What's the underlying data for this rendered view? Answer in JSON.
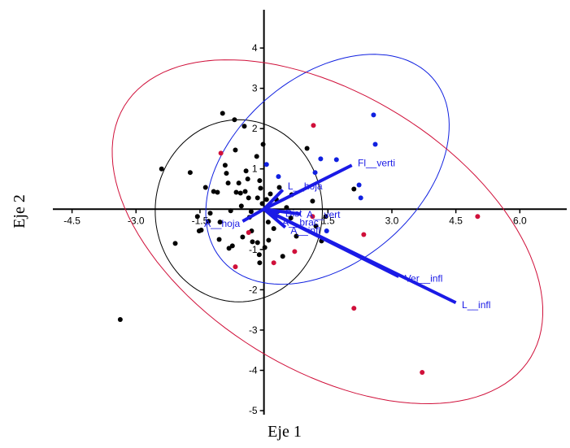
{
  "chart_data": {
    "type": "biplot",
    "xlabel": "Eje 1",
    "ylabel": "Eje 2",
    "xlim": [
      -4.95,
      7.1
    ],
    "ylim": [
      -5.1,
      4.95
    ],
    "xticks": [
      -4.5,
      {
        "value": -3,
        "label": "-3.0"
      },
      -1.5,
      1.5,
      {
        "value": 3,
        "label": "3.0"
      },
      4.5,
      {
        "value": 6,
        "label": "6.0"
      }
    ],
    "yticks": [
      4,
      3,
      2,
      1,
      -1,
      -2,
      -3,
      -4,
      -5
    ],
    "groups": [
      {
        "color": "#000000",
        "x": [
          -3.37,
          -2.4,
          -2.08,
          -1.73,
          -1.56,
          -1.47,
          -1.37,
          -1.26,
          -1.18,
          -1.09,
          -1.03,
          -0.97,
          -0.91,
          -0.88,
          -0.84,
          -0.78,
          -0.74,
          -0.69,
          -0.67,
          -0.65,
          -0.59,
          -0.55,
          -0.53,
          -0.5,
          -0.46,
          -0.44,
          -0.42,
          -0.38,
          -0.36,
          -0.34,
          -0.29,
          -0.27,
          -0.17,
          -0.15,
          -0.11,
          -0.1,
          -0.08,
          -0.04,
          -0.02,
          0.02,
          0.06,
          0.1,
          0.15,
          -0.15,
          -0.1,
          0.23,
          0.29,
          0.36,
          0.44,
          0.53,
          0.63,
          0.65,
          0.76,
          1.01,
          1.14,
          1.22,
          1.35,
          1.45,
          2.11,
          -1.52,
          -1.3,
          -1.05,
          -0.3,
          0.11,
          0.32,
          -0.82
        ],
        "y": [
          -2.74,
          1.0,
          -0.85,
          0.91,
          -0.18,
          -0.52,
          0.54,
          -0.1,
          0.44,
          0.42,
          -0.32,
          2.38,
          1.09,
          0.89,
          0.65,
          -0.04,
          -0.91,
          2.22,
          1.47,
          0.42,
          0.65,
          0.4,
          0.08,
          -0.69,
          2.06,
          0.44,
          0.95,
          0.75,
          0.28,
          -0.2,
          -0.54,
          -0.81,
          1.31,
          0.28,
          -1.13,
          0.71,
          0.52,
          0.14,
          1.61,
          -0.95,
          0.24,
          -0.32,
          0.38,
          -0.83,
          -1.33,
          -0.48,
          0.24,
          0.54,
          -1.17,
          0.04,
          -0.22,
          0.36,
          -0.67,
          1.51,
          0.2,
          -0.42,
          -0.79,
          -0.18,
          0.5,
          -0.54,
          -0.3,
          -0.75,
          -0.06,
          -0.77,
          -0.06,
          -0.97
        ]
      },
      {
        "color": "#d0103a",
        "x": [
          -1.01,
          -0.67,
          -0.36,
          0.23,
          0.72,
          1.16,
          1.14,
          2.34,
          2.11,
          3.71,
          5.01
        ],
        "y": [
          1.39,
          -1.43,
          -0.58,
          -1.33,
          -1.05,
          2.08,
          -0.18,
          -0.63,
          -2.46,
          -4.05,
          -0.18
        ]
      },
      {
        "color": "#1020e0",
        "x": [
          2.57,
          2.61,
          1.7,
          1.33,
          0.34,
          0.06,
          2.23,
          2.27,
          1.2,
          1.47
        ],
        "y": [
          2.34,
          1.61,
          1.23,
          1.25,
          0.81,
          1.11,
          0.6,
          0.28,
          0.91,
          -0.54
        ]
      }
    ],
    "ellipses": [
      {
        "color": "#000000",
        "cx": -0.59,
        "cy": -0.04,
        "rx": 1.96,
        "ry": 2.26,
        "angle": 0
      },
      {
        "color": "#1020e0",
        "cx": 1.49,
        "cy": 0.99,
        "rx": 3.35,
        "ry": 2.25,
        "angle": 45
      },
      {
        "color": "#d0103a",
        "cx": 1.49,
        "cy": -0.56,
        "rx": 5.7,
        "ry": 3.35,
        "angle": -35
      }
    ],
    "vector_color": "#1a1ae6",
    "vectors": [
      {
        "label": "Fl__verti",
        "x": 2.06,
        "y": 1.09
      },
      {
        "label": "L__infl",
        "x": 4.5,
        "y": -2.32
      },
      {
        "label": "Ver__infl",
        "x": 3.16,
        "y": -1.67
      },
      {
        "label": "L__hoja",
        "x": 0.44,
        "y": 0.48
      },
      {
        "label": "A__hoja",
        "x": -0.5,
        "y": -0.3
      },
      {
        "label": "A__infl",
        "x": 0.5,
        "y": -0.45
      },
      {
        "label": "Dist",
        "x": 0.35,
        "y": -0.08
      },
      {
        "label": "A__vert",
        "x": 0.85,
        "y": -0.12
      },
      {
        "label": "A__brac",
        "x": 0.3,
        "y": -0.25
      }
    ]
  }
}
